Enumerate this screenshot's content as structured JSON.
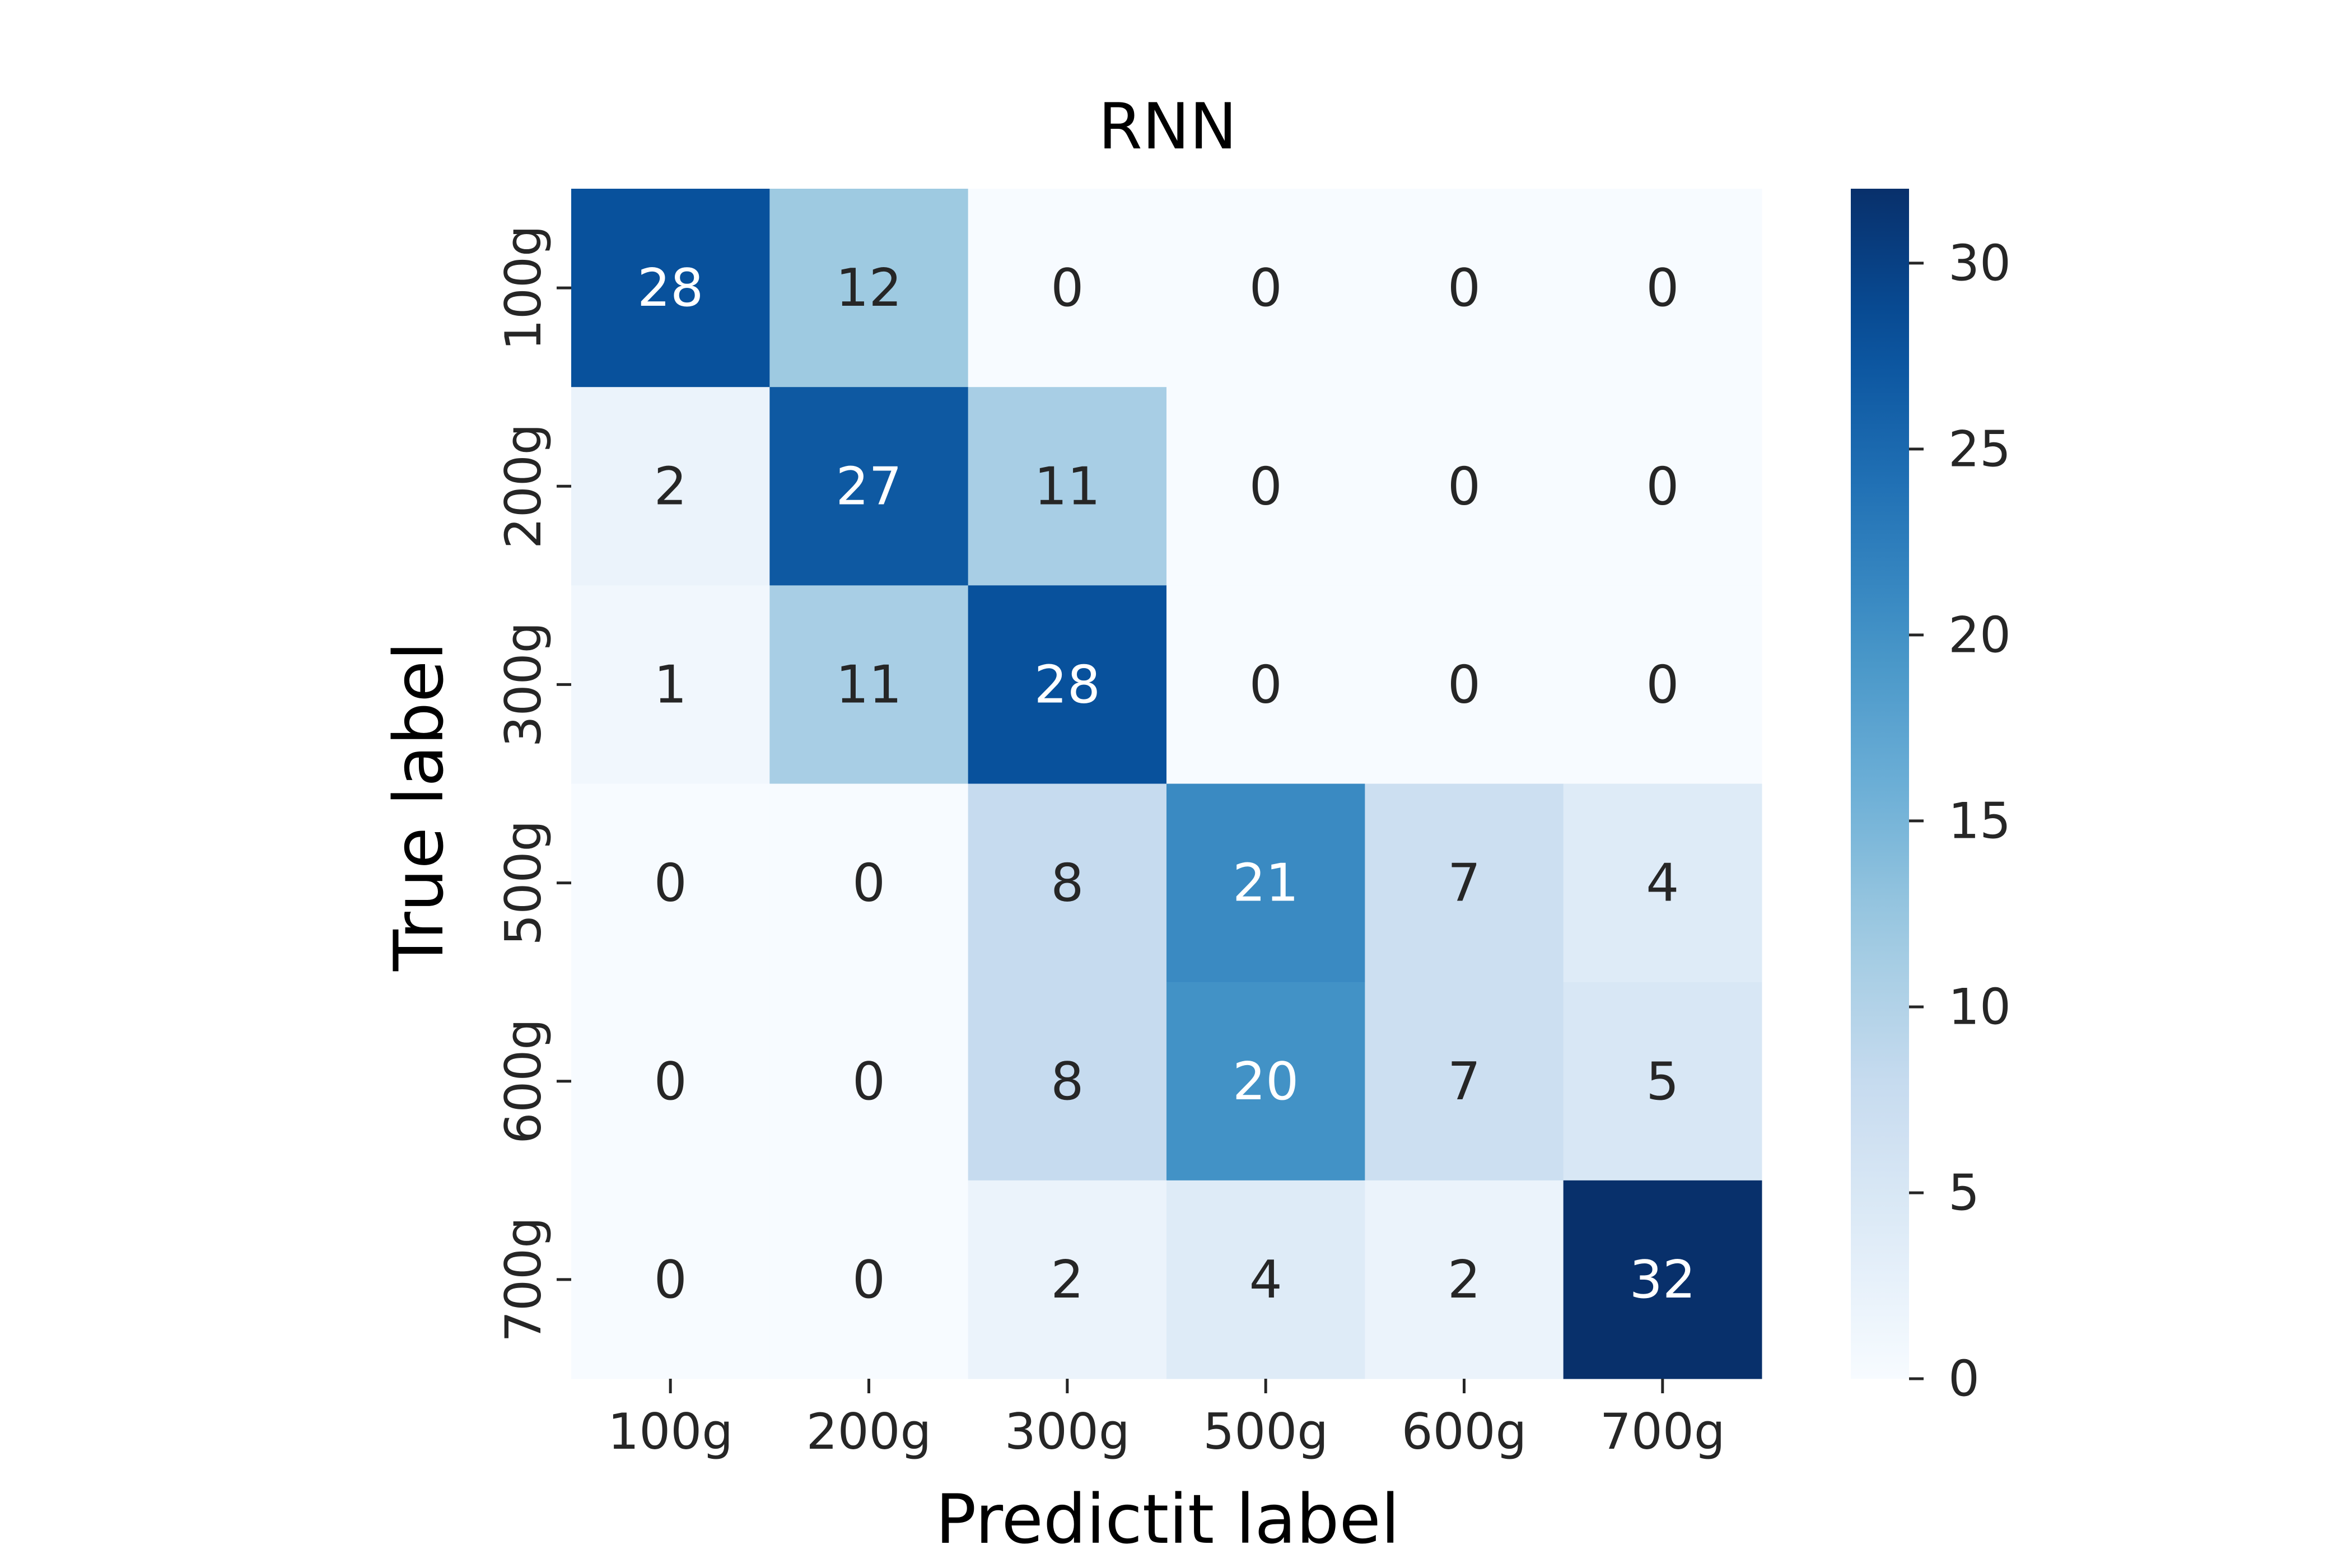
{
  "chart_data": {
    "type": "heatmap",
    "title": "RNN",
    "xlabel": "Predictit label",
    "ylabel": "True label",
    "x_categories": [
      "100g",
      "200g",
      "300g",
      "500g",
      "600g",
      "700g"
    ],
    "y_categories": [
      "100g",
      "200g",
      "300g",
      "500g",
      "600g",
      "700g"
    ],
    "values": [
      [
        28,
        12,
        0,
        0,
        0,
        0
      ],
      [
        2,
        27,
        11,
        0,
        0,
        0
      ],
      [
        1,
        11,
        28,
        0,
        0,
        0
      ],
      [
        0,
        0,
        8,
        21,
        7,
        4
      ],
      [
        0,
        0,
        8,
        20,
        7,
        5
      ],
      [
        0,
        0,
        2,
        4,
        2,
        32
      ]
    ],
    "colorscale": "Blues",
    "color_range": [
      0,
      32
    ],
    "colorbar_ticks": [
      0,
      5,
      10,
      15,
      20,
      25,
      30
    ]
  }
}
